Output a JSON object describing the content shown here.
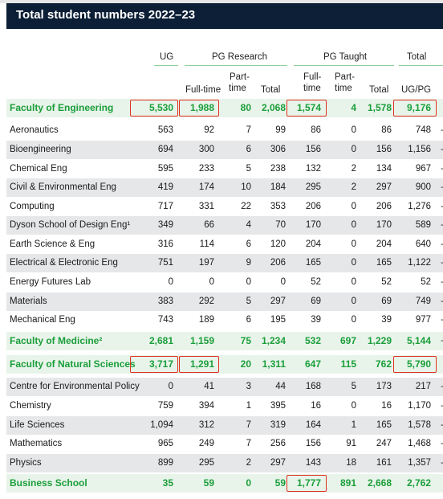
{
  "title": "Total student numbers 2022–23",
  "group_headers": {
    "ug": "UG",
    "pg_research": "PG Research",
    "pg_taught": "PG Taught",
    "total": "Total"
  },
  "sub_headers": {
    "pgr_full_time": "Full-time",
    "pgr_part_time_1": "Part-",
    "pgr_part_time_2": "time",
    "pgr_total": "Total",
    "pgt_full_time_1": "Full-",
    "pgt_full_time_2": "time",
    "pgt_part_time_1": "Part-",
    "pgt_part_time_2": "time",
    "pgt_total": "Total",
    "total_ug_pg": "UG/PG"
  },
  "rows": [
    {
      "name": "Faculty of Engineering",
      "type": "faculty",
      "ug": "5,530",
      "pgr_ft": "1,988",
      "pgr_pt": "80",
      "pgr_total": "2,068",
      "pgt_ft": "1,574",
      "pgt_pt": "4",
      "pgt_total": "1,578",
      "total": "9,176"
    },
    {
      "name": "Aeronautics",
      "ug": "563",
      "pgr_ft": "92",
      "pgr_pt": "7",
      "pgr_total": "99",
      "pgt_ft": "86",
      "pgt_pt": "0",
      "pgt_total": "86",
      "total": "748"
    },
    {
      "name": "Bioengineering",
      "ug": "694",
      "pgr_ft": "300",
      "pgr_pt": "6",
      "pgr_total": "306",
      "pgt_ft": "156",
      "pgt_pt": "0",
      "pgt_total": "156",
      "total": "1,156"
    },
    {
      "name": "Chemical Eng",
      "ug": "595",
      "pgr_ft": "233",
      "pgr_pt": "5",
      "pgr_total": "238",
      "pgt_ft": "132",
      "pgt_pt": "2",
      "pgt_total": "134",
      "total": "967"
    },
    {
      "name": "Civil & Environmental Eng",
      "ug": "419",
      "pgr_ft": "174",
      "pgr_pt": "10",
      "pgr_total": "184",
      "pgt_ft": "295",
      "pgt_pt": "2",
      "pgt_total": "297",
      "total": "900"
    },
    {
      "name": "Computing",
      "ug": "717",
      "pgr_ft": "331",
      "pgr_pt": "22",
      "pgr_total": "353",
      "pgt_ft": "206",
      "pgt_pt": "0",
      "pgt_total": "206",
      "total": "1,276"
    },
    {
      "name": "Dyson School of Design Eng¹",
      "ug": "349",
      "pgr_ft": "66",
      "pgr_pt": "4",
      "pgr_total": "70",
      "pgt_ft": "170",
      "pgt_pt": "0",
      "pgt_total": "170",
      "total": "589"
    },
    {
      "name": "Earth Science & Eng",
      "ug": "316",
      "pgr_ft": "114",
      "pgr_pt": "6",
      "pgr_total": "120",
      "pgt_ft": "204",
      "pgt_pt": "0",
      "pgt_total": "204",
      "total": "640"
    },
    {
      "name": "Electrical & Electronic Eng",
      "ug": "751",
      "pgr_ft": "197",
      "pgr_pt": "9",
      "pgr_total": "206",
      "pgt_ft": "165",
      "pgt_pt": "0",
      "pgt_total": "165",
      "total": "1,122"
    },
    {
      "name": "Energy Futures Lab",
      "ug": "0",
      "pgr_ft": "0",
      "pgr_pt": "0",
      "pgr_total": "0",
      "pgt_ft": "52",
      "pgt_pt": "0",
      "pgt_total": "52",
      "total": "52"
    },
    {
      "name": "Materials",
      "ug": "383",
      "pgr_ft": "292",
      "pgr_pt": "5",
      "pgr_total": "297",
      "pgt_ft": "69",
      "pgt_pt": "0",
      "pgt_total": "69",
      "total": "749"
    },
    {
      "name": "Mechanical Eng",
      "ug": "743",
      "pgr_ft": "189",
      "pgr_pt": "6",
      "pgr_total": "195",
      "pgt_ft": "39",
      "pgt_pt": "0",
      "pgt_total": "39",
      "total": "977"
    },
    {
      "name": "Faculty of Medicine²",
      "type": "faculty",
      "ug": "2,681",
      "pgr_ft": "1,159",
      "pgr_pt": "75",
      "pgr_total": "1,234",
      "pgt_ft": "532",
      "pgt_pt": "697",
      "pgt_total": "1,229",
      "total": "5,144"
    },
    {
      "name": "Faculty of Natural Sciences",
      "type": "faculty",
      "ug": "3,717",
      "pgr_ft": "1,291",
      "pgr_pt": "20",
      "pgr_total": "1,311",
      "pgt_ft": "647",
      "pgt_pt": "115",
      "pgt_total": "762",
      "total": "5,790"
    },
    {
      "name": "Centre for Environmental Policy",
      "ug": "0",
      "pgr_ft": "41",
      "pgr_pt": "3",
      "pgr_total": "44",
      "pgt_ft": "168",
      "pgt_pt": "5",
      "pgt_total": "173",
      "total": "217"
    },
    {
      "name": "Chemistry",
      "ug": "759",
      "pgr_ft": "394",
      "pgr_pt": "1",
      "pgr_total": "395",
      "pgt_ft": "16",
      "pgt_pt": "0",
      "pgt_total": "16",
      "total": "1,170"
    },
    {
      "name": "Life Sciences",
      "ug": "1,094",
      "pgr_ft": "312",
      "pgr_pt": "7",
      "pgr_total": "319",
      "pgt_ft": "164",
      "pgt_pt": "1",
      "pgt_total": "165",
      "total": "1,578"
    },
    {
      "name": "Mathematics",
      "ug": "965",
      "pgr_ft": "249",
      "pgr_pt": "7",
      "pgr_total": "256",
      "pgt_ft": "156",
      "pgt_pt": "91",
      "pgt_total": "247",
      "total": "1,468"
    },
    {
      "name": "Physics",
      "ug": "899",
      "pgr_ft": "295",
      "pgr_pt": "2",
      "pgr_total": "297",
      "pgt_ft": "143",
      "pgt_pt": "18",
      "pgt_total": "161",
      "total": "1,357"
    },
    {
      "name": "Business School",
      "type": "faculty",
      "ug": "35",
      "pgr_ft": "59",
      "pgr_pt": "0",
      "pgr_total": "59",
      "pgt_ft": "1,777",
      "pgt_pt": "891",
      "pgt_total": "2,668",
      "total": "2,762"
    }
  ],
  "highlighted_cells": [
    {
      "row": 0,
      "col": "ug"
    },
    {
      "row": 0,
      "col": "pgr_ft"
    },
    {
      "row": 0,
      "col": "pgt_ft"
    },
    {
      "row": 0,
      "col": "total"
    },
    {
      "row": 13,
      "col": "ug"
    },
    {
      "row": 13,
      "col": "pgr_ft"
    },
    {
      "row": 13,
      "col": "total"
    },
    {
      "row": 19,
      "col": "pgt_ft"
    }
  ],
  "colors": {
    "title_bg": "#0c1f36",
    "faculty_text": "#1b9e3a",
    "faculty_bg": "#e8f4ea",
    "stripe": "#e6e7e9",
    "highlight_box": "#e0301e",
    "header_rule": "#8fcf9b"
  }
}
